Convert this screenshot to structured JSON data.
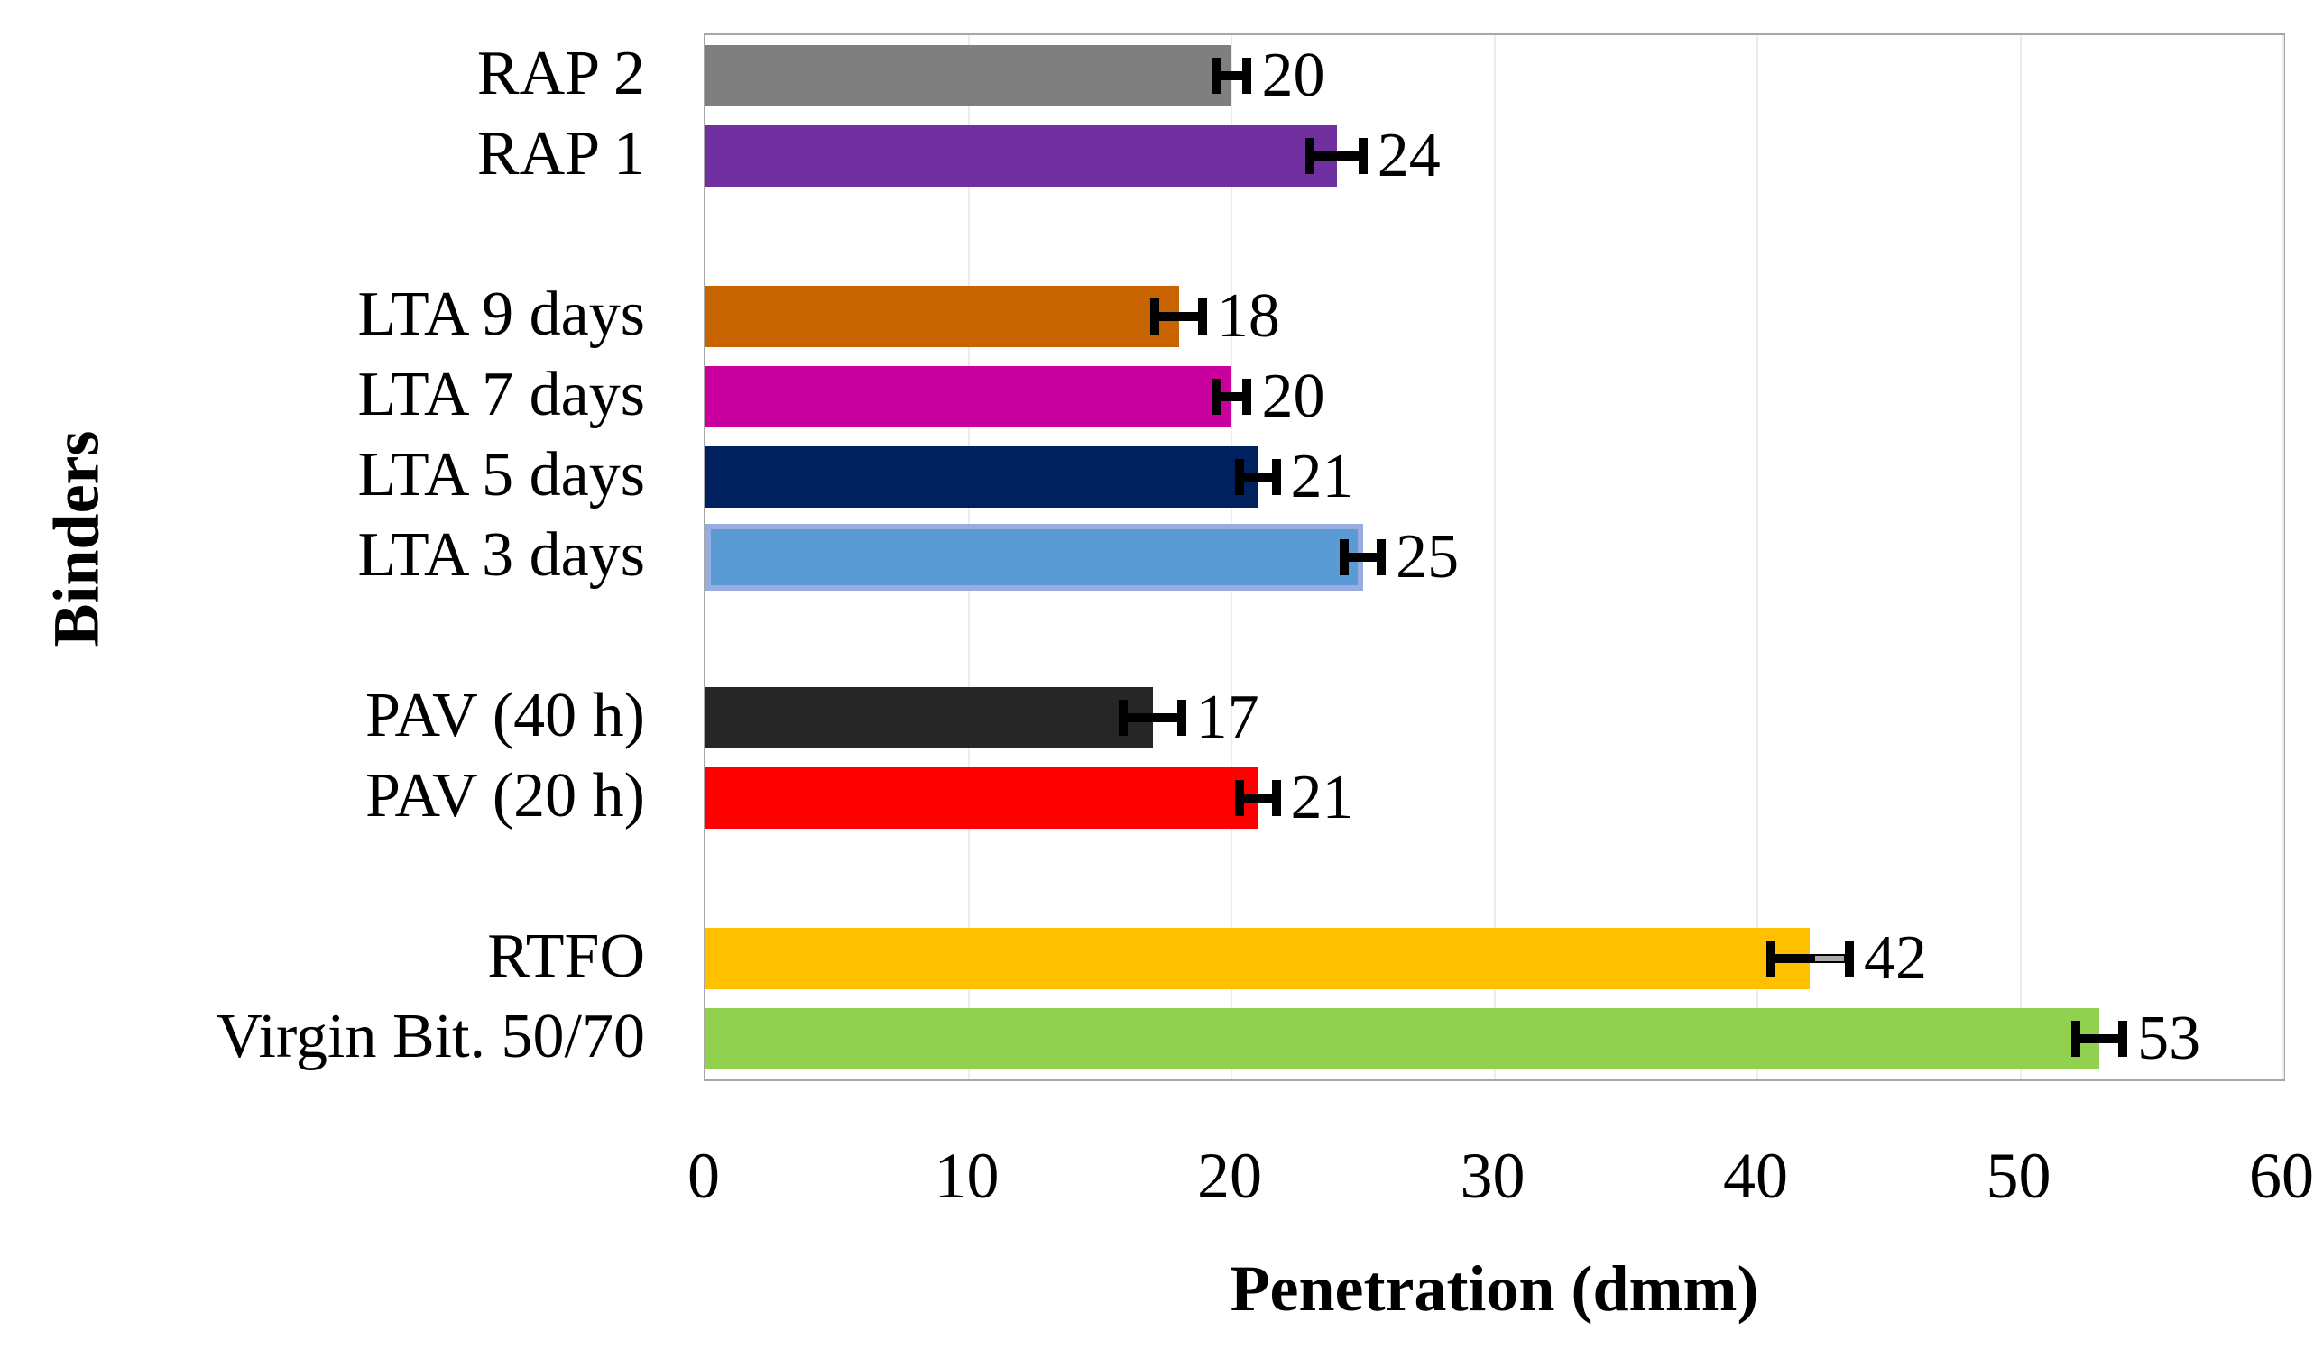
{
  "chart_data": {
    "type": "bar",
    "orientation": "horizontal",
    "xlabel": "Penetration (dmm)",
    "ylabel": "Binders",
    "xlim": [
      0,
      60
    ],
    "xticks": [
      0,
      10,
      20,
      30,
      40,
      50,
      60
    ],
    "grid": "vertical major gridlines, very light gray",
    "legend": "none",
    "value_labels": "shown at end of each bar, after error bar",
    "style": {
      "axis_border_color": "#a6a6a6",
      "gridline_color": "#ececec",
      "error_bar_color": "#000000",
      "text_color": "#000000",
      "background": "#ffffff"
    },
    "bars": [
      {
        "label": "RAP 2",
        "value": 20,
        "error": 0.6,
        "color": "#7f7f7f"
      },
      {
        "label": "RAP 1",
        "value": 24,
        "error": 1.0,
        "color": "#7030a0"
      },
      {
        "label": "",
        "value": null
      },
      {
        "label": "LTA 9 days",
        "value": 18,
        "error": 0.9,
        "color": "#c86400"
      },
      {
        "label": "LTA 7 days",
        "value": 20,
        "error": 0.6,
        "color": "#c9009e"
      },
      {
        "label": "LTA 5 days",
        "value": 21,
        "error": 0.7,
        "color": "#00205e"
      },
      {
        "label": "LTA 3 days",
        "value": 25,
        "error": 0.7,
        "color": "#5b9bd5",
        "border_color": "#98ace0"
      },
      {
        "label": "",
        "value": null
      },
      {
        "label": "PAV (40 h)",
        "value": 17,
        "error": 1.1,
        "color": "#262626"
      },
      {
        "label": "PAV (20 h)",
        "value": 21,
        "error": 0.7,
        "color": "#ff0000"
      },
      {
        "label": "",
        "value": null
      },
      {
        "label": "RTFO",
        "value": 42,
        "error": 1.5,
        "color": "#ffc000",
        "error_line2_color": "#ababab"
      },
      {
        "label": "Virgin Bit. 50/70",
        "value": 53,
        "error": 0.9,
        "color": "#92d050"
      }
    ]
  }
}
